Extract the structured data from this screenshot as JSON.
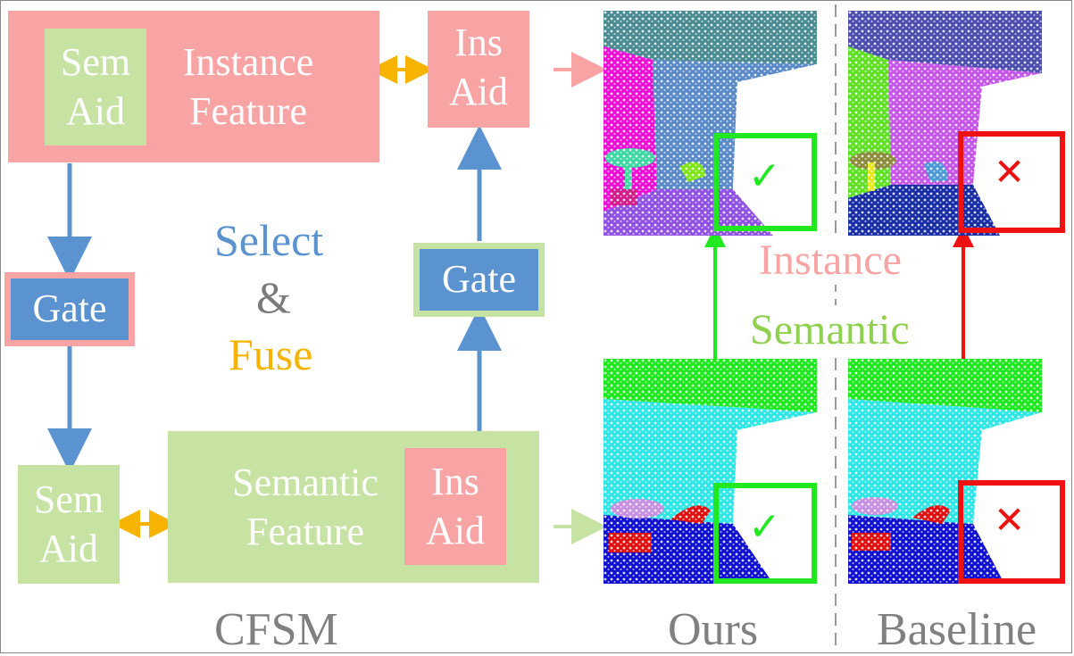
{
  "diagram": {
    "top_block": {
      "sem_aid": "Sem\nAid",
      "feature": "Instance\nFeature",
      "ins_aid": "Ins\nAid"
    },
    "bottom_block": {
      "sem_aid": "Sem\nAid",
      "feature": "Semantic\nFeature",
      "ins_aid": "Ins\nAid"
    },
    "gate_left": "Gate",
    "gate_right": "Gate",
    "center": {
      "select": "Select",
      "amp": "&",
      "fuse": "Fuse"
    },
    "footer_cfsm": "CFSM"
  },
  "results": {
    "instance_label": "Instance",
    "semantic_label": "Semantic",
    "ours_label": "Ours",
    "baseline_label": "Baseline",
    "check_mark": "✓",
    "cross_mark": "✕"
  },
  "colors": {
    "pink": "#f8a4a4",
    "green": "#c7e3a4",
    "blue": "#5a93cf",
    "orange": "#f6b400",
    "check_green": "#22e822",
    "cross_red": "#ee1111",
    "footer_gray": "#808080"
  }
}
